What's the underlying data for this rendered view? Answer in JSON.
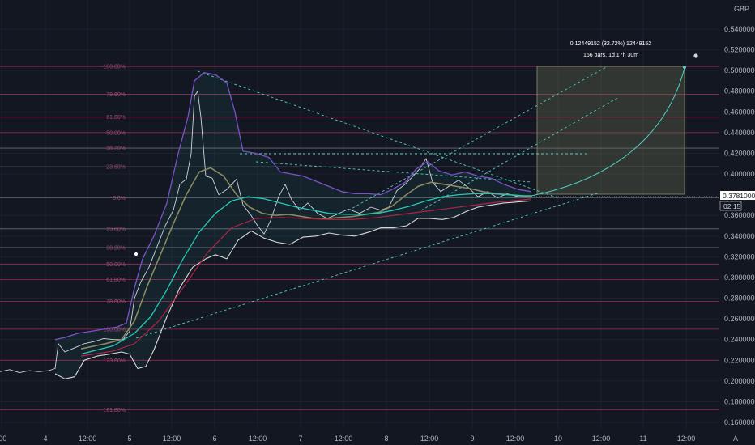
{
  "currency": "GBP",
  "price_tag": "0.37810000",
  "countdown": "02:15",
  "measure": {
    "line1": "0.12449152 (32.72%) 12449152",
    "line2": "166 bars, 1d 17h 30m"
  },
  "x_labels": [
    ":00",
    "4",
    "12:00",
    "5",
    "12:00",
    "6",
    "12:00",
    "7",
    "12:00",
    "8",
    "12:00",
    "9",
    "12:00",
    "10",
    "12:00",
    "11",
    "12:00"
  ],
  "y_labels": [
    "0.54000000",
    "0.52000000",
    "0.50000000",
    "0.48000000",
    "0.46000000",
    "0.44000000",
    "0.42000000",
    "0.40000000",
    "0.36000000",
    "0.34000000",
    "0.32000000",
    "0.30000000",
    "0.28000000",
    "0.26000000",
    "0.24000000",
    "0.22000000",
    "0.20000000",
    "0.18000000",
    "0.16000000"
  ],
  "fib_labels": [
    "-100.00%",
    "-78.60%",
    "-61.80%",
    "-50.00%",
    "-38.20%",
    "-23.60%",
    "0.0%",
    "23.60%",
    "38.20%",
    "50.00%",
    "61.80%",
    "78.60%",
    "100.00%",
    "123.60%",
    "161.80%"
  ],
  "colors": {
    "background": "#131722",
    "grid": "#1f2330",
    "price_line": "#d1d4dc",
    "purple_band": "#7b52c9",
    "white_band": "#d9d9d9",
    "olive_ma": "#8a8a60",
    "teal_ma": "#26c6b5",
    "red_ma": "#b22347",
    "fib_line": "#a02a55",
    "fib_text": "#a64d73",
    "projection": "#4dd0c1",
    "measure_box": "#6b7050"
  },
  "chart_data": {
    "type": "line",
    "title": "",
    "xlabel": "",
    "ylabel": "",
    "y_axis_position": "right",
    "ylim": [
      0.155,
      0.55
    ],
    "grid": true,
    "x_ticks": [
      ":00",
      "4",
      "12:00",
      "5",
      "12:00",
      "6",
      "12:00",
      "7",
      "12:00",
      "8",
      "12:00",
      "9",
      "12:00",
      "10",
      "12:00",
      "11",
      "12:00"
    ],
    "y_ticks": [
      0.54,
      0.52,
      0.5,
      0.48,
      0.46,
      0.44,
      0.42,
      0.4,
      0.36,
      0.34,
      0.32,
      0.3,
      0.28,
      0.26,
      0.24,
      0.22,
      0.2,
      0.18,
      0.16
    ],
    "last_price": 0.3781,
    "fib_levels": [
      {
        "label": "-100.00%",
        "value": 0.504
      },
      {
        "label": "-78.60%",
        "value": 0.477
      },
      {
        "label": "-61.80%",
        "value": 0.455
      },
      {
        "label": "-50.00%",
        "value": 0.44
      },
      {
        "label": "-38.20%",
        "value": 0.425
      },
      {
        "label": "-23.60%",
        "value": 0.407
      },
      {
        "label": "0.0%",
        "value": 0.377
      },
      {
        "label": "23.60%",
        "value": 0.347
      },
      {
        "label": "38.20%",
        "value": 0.329
      },
      {
        "label": "50.00%",
        "value": 0.313
      },
      {
        "label": "61.80%",
        "value": 0.298
      },
      {
        "label": "78.60%",
        "value": 0.277
      },
      {
        "label": "100.00%",
        "value": 0.25
      },
      {
        "label": "123.60%",
        "value": 0.22
      },
      {
        "label": "161.80%",
        "value": 0.172
      }
    ],
    "series": [
      {
        "values": [
          [
            0,
            0.209
          ],
          [
            12,
            0.211
          ],
          [
            24,
            0.208
          ],
          [
            36,
            0.21
          ],
          [
            48,
            0.209
          ],
          [
            60,
            0.21
          ],
          [
            68,
            0.212
          ],
          [
            72,
            0.236
          ],
          [
            80,
            0.228
          ],
          [
            92,
            0.232
          ],
          [
            104,
            0.236
          ],
          [
            116,
            0.238
          ],
          [
            128,
            0.241
          ],
          [
            140,
            0.24
          ],
          [
            152,
            0.24
          ],
          [
            160,
            0.248
          ],
          [
            166,
            0.28
          ],
          [
            174,
            0.296
          ],
          [
            184,
            0.31
          ],
          [
            194,
            0.33
          ],
          [
            204,
            0.35
          ],
          [
            214,
            0.365
          ],
          [
            222,
            0.39
          ],
          [
            230,
            0.395
          ],
          [
            236,
            0.42
          ],
          [
            240,
            0.475
          ],
          [
            244,
            0.48
          ],
          [
            248,
            0.455
          ],
          [
            254,
            0.398
          ],
          [
            262,
            0.396
          ],
          [
            270,
            0.38
          ],
          [
            280,
            0.385
          ],
          [
            292,
            0.395
          ],
          [
            300,
            0.37
          ],
          [
            310,
            0.36
          ],
          [
            318,
            0.35
          ],
          [
            326,
            0.342
          ],
          [
            334,
            0.355
          ],
          [
            344,
            0.378
          ],
          [
            352,
            0.39
          ],
          [
            360,
            0.375
          ],
          [
            370,
            0.365
          ],
          [
            380,
            0.372
          ],
          [
            392,
            0.362
          ],
          [
            404,
            0.357
          ],
          [
            416,
            0.361
          ],
          [
            430,
            0.366
          ],
          [
            444,
            0.362
          ],
          [
            458,
            0.368
          ],
          [
            470,
            0.365
          ],
          [
            480,
            0.368
          ],
          [
            490,
            0.384
          ],
          [
            500,
            0.39
          ],
          [
            510,
            0.398
          ],
          [
            518,
            0.405
          ],
          [
            526,
            0.415
          ],
          [
            534,
            0.392
          ],
          [
            544,
            0.383
          ],
          [
            554,
            0.388
          ],
          [
            566,
            0.394
          ],
          [
            578,
            0.387
          ],
          [
            590,
            0.378
          ],
          [
            602,
            0.383
          ],
          [
            614,
            0.377
          ],
          [
            626,
            0.381
          ],
          [
            640,
            0.378
          ],
          [
            656,
            0.378
          ]
        ]
      },
      {
        "values": [
          [
            68,
            0.24
          ],
          [
            80,
            0.242
          ],
          [
            96,
            0.246
          ],
          [
            112,
            0.248
          ],
          [
            128,
            0.25
          ],
          [
            144,
            0.252
          ],
          [
            156,
            0.256
          ],
          [
            166,
            0.29
          ],
          [
            176,
            0.318
          ],
          [
            190,
            0.34
          ],
          [
            206,
            0.372
          ],
          [
            220,
            0.42
          ],
          [
            232,
            0.455
          ],
          [
            240,
            0.49
          ],
          [
            252,
            0.498
          ],
          [
            266,
            0.496
          ],
          [
            280,
            0.488
          ],
          [
            290,
            0.46
          ],
          [
            300,
            0.422
          ],
          [
            316,
            0.42
          ],
          [
            332,
            0.416
          ],
          [
            346,
            0.402
          ],
          [
            360,
            0.4
          ],
          [
            374,
            0.398
          ],
          [
            390,
            0.393
          ],
          [
            406,
            0.388
          ],
          [
            422,
            0.383
          ],
          [
            438,
            0.381
          ],
          [
            454,
            0.381
          ],
          [
            470,
            0.38
          ],
          [
            484,
            0.385
          ],
          [
            500,
            0.392
          ],
          [
            514,
            0.405
          ],
          [
            528,
            0.412
          ],
          [
            542,
            0.403
          ],
          [
            558,
            0.399
          ],
          [
            574,
            0.402
          ],
          [
            590,
            0.398
          ],
          [
            606,
            0.396
          ],
          [
            622,
            0.39
          ],
          [
            640,
            0.385
          ],
          [
            656,
            0.383
          ]
        ]
      },
      {
        "values": [
          [
            68,
            0.207
          ],
          [
            80,
            0.202
          ],
          [
            92,
            0.204
          ],
          [
            104,
            0.22
          ],
          [
            120,
            0.224
          ],
          [
            136,
            0.226
          ],
          [
            150,
            0.228
          ],
          [
            160,
            0.226
          ],
          [
            170,
            0.212
          ],
          [
            180,
            0.214
          ],
          [
            190,
            0.23
          ],
          [
            206,
            0.262
          ],
          [
            222,
            0.29
          ],
          [
            238,
            0.31
          ],
          [
            254,
            0.318
          ],
          [
            266,
            0.322
          ],
          [
            280,
            0.318
          ],
          [
            294,
            0.336
          ],
          [
            310,
            0.345
          ],
          [
            326,
            0.338
          ],
          [
            342,
            0.334
          ],
          [
            358,
            0.332
          ],
          [
            374,
            0.339
          ],
          [
            390,
            0.34
          ],
          [
            406,
            0.343
          ],
          [
            422,
            0.341
          ],
          [
            438,
            0.34
          ],
          [
            456,
            0.344
          ],
          [
            470,
            0.348
          ],
          [
            486,
            0.348
          ],
          [
            502,
            0.35
          ],
          [
            516,
            0.357
          ],
          [
            530,
            0.357
          ],
          [
            546,
            0.356
          ],
          [
            560,
            0.358
          ],
          [
            576,
            0.364
          ],
          [
            590,
            0.368
          ],
          [
            606,
            0.37
          ],
          [
            622,
            0.372
          ],
          [
            640,
            0.373
          ],
          [
            656,
            0.374
          ]
        ]
      },
      {
        "values": [
          [
            100,
            0.231
          ],
          [
            130,
            0.236
          ],
          [
            150,
            0.24
          ],
          [
            166,
            0.258
          ],
          [
            182,
            0.292
          ],
          [
            198,
            0.322
          ],
          [
            214,
            0.352
          ],
          [
            230,
            0.38
          ],
          [
            246,
            0.402
          ],
          [
            260,
            0.406
          ],
          [
            276,
            0.398
          ],
          [
            292,
            0.38
          ],
          [
            308,
            0.368
          ],
          [
            324,
            0.362
          ],
          [
            340,
            0.36
          ],
          [
            356,
            0.361
          ],
          [
            372,
            0.359
          ],
          [
            388,
            0.357
          ],
          [
            404,
            0.357
          ],
          [
            420,
            0.358
          ],
          [
            436,
            0.359
          ],
          [
            452,
            0.361
          ],
          [
            468,
            0.363
          ],
          [
            484,
            0.369
          ],
          [
            500,
            0.379
          ],
          [
            516,
            0.388
          ],
          [
            532,
            0.392
          ],
          [
            548,
            0.39
          ],
          [
            564,
            0.388
          ],
          [
            580,
            0.386
          ],
          [
            596,
            0.383
          ],
          [
            612,
            0.381
          ],
          [
            628,
            0.38
          ],
          [
            644,
            0.379
          ],
          [
            656,
            0.378
          ]
        ]
      },
      {
        "values": [
          [
            100,
            0.226
          ],
          [
            140,
            0.234
          ],
          [
            166,
            0.246
          ],
          [
            186,
            0.262
          ],
          [
            206,
            0.288
          ],
          [
            226,
            0.318
          ],
          [
            246,
            0.344
          ],
          [
            266,
            0.362
          ],
          [
            286,
            0.374
          ],
          [
            306,
            0.378
          ],
          [
            326,
            0.376
          ],
          [
            346,
            0.372
          ],
          [
            366,
            0.368
          ],
          [
            386,
            0.365
          ],
          [
            406,
            0.362
          ],
          [
            426,
            0.361
          ],
          [
            446,
            0.361
          ],
          [
            466,
            0.362
          ],
          [
            486,
            0.365
          ],
          [
            506,
            0.369
          ],
          [
            526,
            0.374
          ],
          [
            546,
            0.378
          ],
          [
            566,
            0.38
          ],
          [
            586,
            0.381
          ],
          [
            606,
            0.381
          ],
          [
            626,
            0.38
          ],
          [
            646,
            0.379
          ],
          [
            656,
            0.379
          ]
        ]
      },
      {
        "values": [
          [
            100,
            0.224
          ],
          [
            140,
            0.229
          ],
          [
            166,
            0.236
          ],
          [
            196,
            0.258
          ],
          [
            226,
            0.29
          ],
          [
            256,
            0.324
          ],
          [
            286,
            0.348
          ],
          [
            316,
            0.357
          ],
          [
            346,
            0.358
          ],
          [
            376,
            0.357
          ],
          [
            406,
            0.356
          ],
          [
            436,
            0.356
          ],
          [
            466,
            0.358
          ],
          [
            496,
            0.361
          ],
          [
            526,
            0.364
          ],
          [
            556,
            0.367
          ],
          [
            586,
            0.37
          ],
          [
            616,
            0.373
          ],
          [
            646,
            0.375
          ],
          [
            656,
            0.376
          ]
        ]
      }
    ]
  }
}
